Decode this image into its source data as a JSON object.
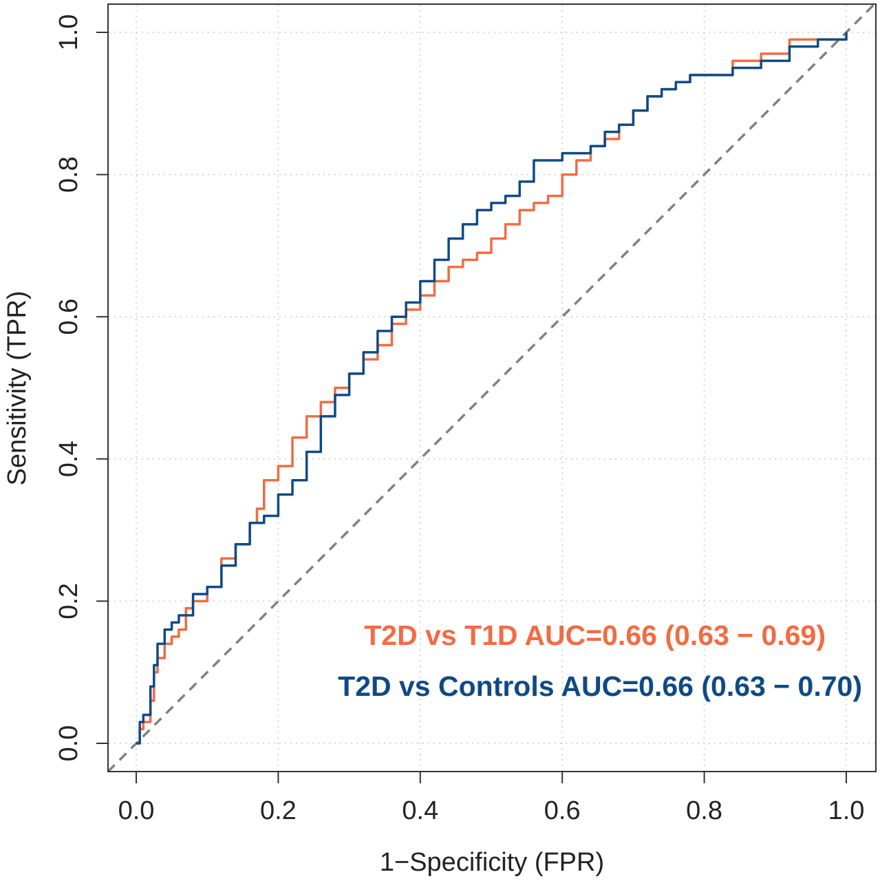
{
  "chart_data": {
    "type": "line",
    "xlabel": "1−Specificity (FPR)",
    "ylabel": "Sensitivity (TPR)",
    "xlim": [
      -0.04,
      1.04
    ],
    "ylim": [
      -0.04,
      1.04
    ],
    "x_ticks": [
      "0.0",
      "0.2",
      "0.4",
      "0.6",
      "0.8",
      "1.0"
    ],
    "y_ticks": [
      "0.0",
      "0.2",
      "0.4",
      "0.6",
      "0.8",
      "1.0"
    ],
    "grid": true,
    "reference_line": {
      "x": [
        0,
        1
      ],
      "y": [
        0,
        1
      ],
      "style": "dashed",
      "color": "#808080"
    },
    "legend": [
      {
        "text": "T2D vs T1D AUC=0.66 (0.63 − 0.69)",
        "color": "#F26B43"
      },
      {
        "text": "T2D vs Controls AUC=0.66 (0.63 − 0.70)",
        "color": "#0E4A86"
      }
    ],
    "series": [
      {
        "color": "#F26B43",
        "x": [
          0,
          0.005,
          0.01,
          0.02,
          0.025,
          0.03,
          0.04,
          0.05,
          0.06,
          0.07,
          0.08,
          0.1,
          0.12,
          0.14,
          0.16,
          0.17,
          0.18,
          0.2,
          0.22,
          0.24,
          0.26,
          0.28,
          0.3,
          0.32,
          0.34,
          0.36,
          0.38,
          0.4,
          0.42,
          0.44,
          0.46,
          0.48,
          0.5,
          0.52,
          0.54,
          0.56,
          0.58,
          0.6,
          0.62,
          0.64,
          0.66,
          0.68,
          0.7,
          0.72,
          0.74,
          0.76,
          0.78,
          0.8,
          0.84,
          0.88,
          0.92,
          0.96,
          1.0
        ],
        "y": [
          0,
          0.02,
          0.03,
          0.06,
          0.1,
          0.12,
          0.14,
          0.15,
          0.16,
          0.19,
          0.2,
          0.22,
          0.26,
          0.28,
          0.31,
          0.33,
          0.37,
          0.39,
          0.43,
          0.46,
          0.48,
          0.5,
          0.52,
          0.54,
          0.56,
          0.59,
          0.61,
          0.63,
          0.65,
          0.67,
          0.68,
          0.69,
          0.71,
          0.73,
          0.75,
          0.76,
          0.77,
          0.8,
          0.82,
          0.84,
          0.85,
          0.87,
          0.89,
          0.91,
          0.92,
          0.93,
          0.94,
          0.94,
          0.96,
          0.97,
          0.99,
          0.99,
          1.0
        ]
      },
      {
        "color": "#0E4A86",
        "x": [
          0,
          0.005,
          0.01,
          0.02,
          0.025,
          0.03,
          0.04,
          0.05,
          0.06,
          0.08,
          0.1,
          0.12,
          0.14,
          0.16,
          0.18,
          0.2,
          0.22,
          0.24,
          0.26,
          0.28,
          0.3,
          0.32,
          0.34,
          0.36,
          0.38,
          0.4,
          0.42,
          0.44,
          0.46,
          0.48,
          0.5,
          0.52,
          0.54,
          0.56,
          0.58,
          0.6,
          0.62,
          0.64,
          0.66,
          0.68,
          0.7,
          0.72,
          0.74,
          0.76,
          0.78,
          0.8,
          0.84,
          0.88,
          0.92,
          0.96,
          1.0
        ],
        "y": [
          0,
          0.03,
          0.04,
          0.08,
          0.11,
          0.14,
          0.16,
          0.17,
          0.18,
          0.21,
          0.22,
          0.25,
          0.28,
          0.31,
          0.32,
          0.35,
          0.37,
          0.41,
          0.46,
          0.49,
          0.52,
          0.55,
          0.58,
          0.6,
          0.62,
          0.65,
          0.68,
          0.71,
          0.73,
          0.75,
          0.76,
          0.77,
          0.79,
          0.82,
          0.82,
          0.83,
          0.83,
          0.84,
          0.86,
          0.87,
          0.89,
          0.91,
          0.92,
          0.93,
          0.94,
          0.94,
          0.95,
          0.96,
          0.98,
          0.99,
          1.0
        ]
      }
    ]
  }
}
